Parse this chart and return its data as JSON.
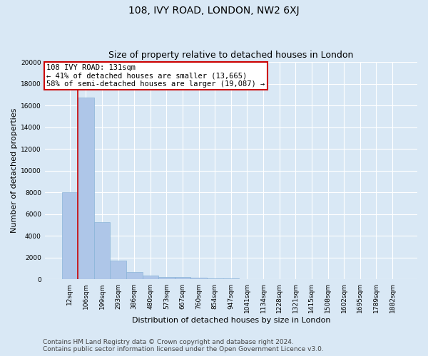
{
  "title": "108, IVY ROAD, LONDON, NW2 6XJ",
  "subtitle": "Size of property relative to detached houses in London",
  "xlabel": "Distribution of detached houses by size in London",
  "ylabel": "Number of detached properties",
  "categories": [
    "12sqm",
    "106sqm",
    "199sqm",
    "293sqm",
    "386sqm",
    "480sqm",
    "573sqm",
    "667sqm",
    "760sqm",
    "854sqm",
    "947sqm",
    "1041sqm",
    "1134sqm",
    "1228sqm",
    "1321sqm",
    "1415sqm",
    "1508sqm",
    "1602sqm",
    "1695sqm",
    "1789sqm",
    "1882sqm"
  ],
  "values": [
    8050,
    16700,
    5300,
    1750,
    700,
    350,
    220,
    200,
    155,
    100,
    70,
    55,
    45,
    35,
    30,
    25,
    22,
    18,
    15,
    13,
    10
  ],
  "bar_color": "#aec6e8",
  "bar_edge_color": "#8ab4d8",
  "vline_color": "#cc0000",
  "annotation_box_text": "108 IVY ROAD: 131sqm\n← 41% of detached houses are smaller (13,665)\n58% of semi-detached houses are larger (19,087) →",
  "annotation_box_color": "#ffffff",
  "annotation_box_edge_color": "#cc0000",
  "background_color": "#d9e8f5",
  "plot_bg_color": "#d9e8f5",
  "ylim": [
    0,
    20000
  ],
  "yticks": [
    0,
    2000,
    4000,
    6000,
    8000,
    10000,
    12000,
    14000,
    16000,
    18000,
    20000
  ],
  "footer_line1": "Contains HM Land Registry data © Crown copyright and database right 2024.",
  "footer_line2": "Contains public sector information licensed under the Open Government Licence v3.0.",
  "title_fontsize": 10,
  "subtitle_fontsize": 9,
  "annotation_fontsize": 7.5,
  "axis_label_fontsize": 8,
  "tick_fontsize": 6.5,
  "footer_fontsize": 6.5
}
